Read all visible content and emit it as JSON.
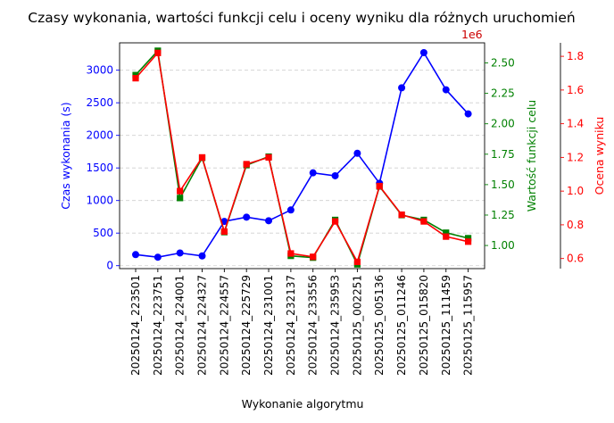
{
  "chart_data": {
    "type": "line",
    "title": "Czasy wykonania, wartości funkcji celu i oceny wyniku dla różnych uruchomień",
    "xlabel": "Wykonanie algorytmu",
    "categories": [
      "20250124_223501",
      "20250124_223751",
      "20250124_224001",
      "20250124_224327",
      "20250124_224557",
      "20250124_225729",
      "20250124_231001",
      "20250124_232137",
      "20250124_233556",
      "20250124_235953",
      "20250125_002251",
      "20250125_005136",
      "20250125_011246",
      "20250125_015820",
      "20250125_111459",
      "20250125_115957"
    ],
    "axes": [
      {
        "id": "left",
        "label": "Czas wykonania (s)",
        "color": "#0000ff",
        "ylim": [
          -45,
          3420
        ],
        "ticks": [
          0,
          500,
          1000,
          1500,
          2000,
          2500,
          3000
        ],
        "tick_labels": [
          "0",
          "500",
          "1000",
          "1500",
          "2000",
          "2500",
          "3000"
        ]
      },
      {
        "id": "right1",
        "label": "Wartość funkcji celu",
        "color": "#008000",
        "offset_text": "1e6",
        "ylim": [
          810000,
          2665000
        ],
        "ticks": [
          1000000,
          1250000,
          1500000,
          1750000,
          2000000,
          2250000,
          2500000
        ],
        "tick_labels": [
          "1.00",
          "1.25",
          "1.50",
          "1.75",
          "2.00",
          "2.25",
          "2.50"
        ]
      },
      {
        "id": "right2",
        "label": "Ocena wyniku",
        "color": "#ff0000",
        "ylim": [
          0.54,
          1.88
        ],
        "ticks": [
          0.6,
          0.8,
          1.0,
          1.2,
          1.4,
          1.6,
          1.8
        ],
        "tick_labels": [
          "0.6",
          "0.8",
          "1.0",
          "1.2",
          "1.4",
          "1.6",
          "1.8"
        ]
      }
    ],
    "series": [
      {
        "name": "Czas wykonania (s)",
        "axis": "left",
        "color": "#0000ff",
        "marker": "circle",
        "values": [
          170,
          130,
          195,
          150,
          680,
          745,
          690,
          855,
          1425,
          1380,
          1725,
          1265,
          2730,
          3270,
          2700,
          2330
        ]
      },
      {
        "name": "Wartość funkcji celu",
        "axis": "right1",
        "color": "#008000",
        "marker": "square",
        "values": [
          2400000,
          2600000,
          1390000,
          1720000,
          1110000,
          1660000,
          1730000,
          915000,
          900000,
          1210000,
          845000,
          1485000,
          1250000,
          1210000,
          1105000,
          1060000
        ]
      },
      {
        "name": "Ocena wyniku",
        "axis": "right2",
        "color": "#ff0000",
        "marker": "square",
        "values": [
          1.67,
          1.82,
          1.0,
          1.2,
          0.76,
          1.16,
          1.2,
          0.63,
          0.61,
          0.82,
          0.58,
          1.03,
          0.86,
          0.82,
          0.73,
          0.7
        ]
      }
    ],
    "grid": {
      "y": true,
      "x": false,
      "style": "dashed"
    },
    "legend": "none"
  }
}
